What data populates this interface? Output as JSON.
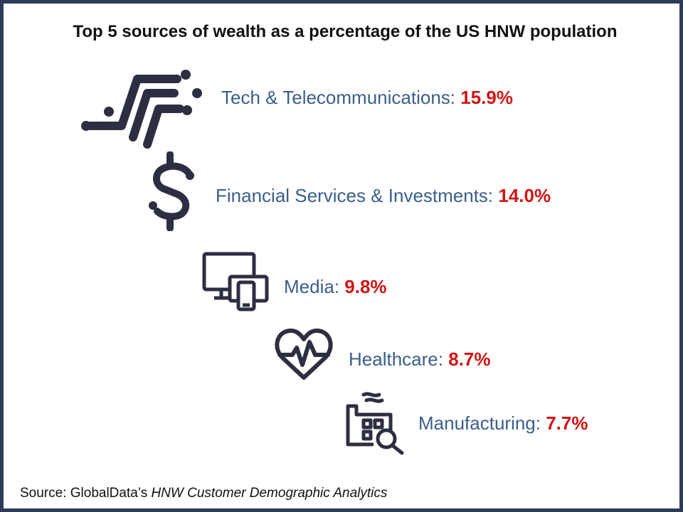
{
  "title": "Top 5 sources of wealth as a percentage of the US HNW population",
  "colors": {
    "frame": "#2c3d5b",
    "label": "#3a5f8a",
    "value": "#d01515",
    "icon": "#2e2e42"
  },
  "chart_data": {
    "type": "bar",
    "title": "Top 5 sources of wealth as a percentage of the US HNW population",
    "unit": "%",
    "categories": [
      "Tech & Telecommunications",
      "Financial Services & Investments",
      "Media",
      "Healthcare",
      "Manufacturing"
    ],
    "values": [
      15.9,
      14.0,
      9.8,
      8.7,
      7.7
    ],
    "items": [
      {
        "label": "Tech & Telecommunications:",
        "value_text": "15.9%",
        "icon": "tech-circuit-icon"
      },
      {
        "label": "Financial Services & Investments:",
        "value_text": "14.0%",
        "icon": "dollar-icon"
      },
      {
        "label": "Media:",
        "value_text": "9.8%",
        "icon": "devices-icon"
      },
      {
        "label": "Healthcare:",
        "value_text": "8.7%",
        "icon": "heart-pulse-icon"
      },
      {
        "label": "Manufacturing:",
        "value_text": "7.7%",
        "icon": "factory-icon"
      }
    ]
  },
  "source": {
    "prefix": "Source: GlobalData’s",
    "publication": "HNW Customer Demographic Analytics"
  }
}
